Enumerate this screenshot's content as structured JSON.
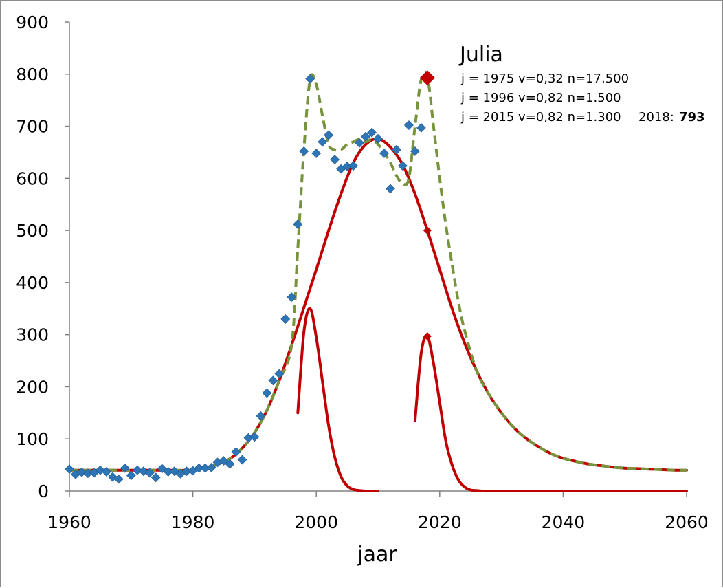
{
  "chart_data": {
    "type": "scatter",
    "title": "",
    "xlabel": "jaar",
    "ylabel": "",
    "xlim": [
      1960,
      2060
    ],
    "ylim": [
      0,
      900
    ],
    "x_ticks": [
      "1960",
      "1980",
      "2000",
      "2020",
      "2040",
      "2060"
    ],
    "y_ticks": [
      "0",
      "100",
      "200",
      "300",
      "400",
      "500",
      "600",
      "700",
      "800",
      "900"
    ],
    "grid": false,
    "colors": {
      "observed": "#2e75b6",
      "model": "#c00000",
      "sum": "#77933c"
    },
    "annotation": {
      "name": "Julia",
      "lines": [
        "j = 1975 v=0,32 n=17.500",
        "j = 1996 v=0,82 n=1.500",
        "j = 2015 v=0,82 n=1.300"
      ],
      "current_label": "2018:",
      "current_value": "793"
    },
    "observed": {
      "x": [
        1960,
        1961,
        1962,
        1963,
        1964,
        1965,
        1966,
        1967,
        1968,
        1969,
        1970,
        1971,
        1972,
        1973,
        1974,
        1975,
        1976,
        1977,
        1978,
        1979,
        1980,
        1981,
        1982,
        1983,
        1984,
        1985,
        1986,
        1987,
        1988,
        1989,
        1990,
        1991,
        1992,
        1993,
        1994,
        1995,
        1996,
        1997,
        1998,
        1999,
        2000,
        2001,
        2002,
        2003,
        2004,
        2005,
        2006,
        2007,
        2008,
        2009,
        2010,
        2011,
        2012,
        2013,
        2014,
        2015,
        2016,
        2017
      ],
      "y": [
        42,
        32,
        36,
        34,
        35,
        40,
        37,
        27,
        23,
        44,
        30,
        40,
        38,
        35,
        26,
        43,
        37,
        38,
        33,
        38,
        39,
        44,
        44,
        45,
        55,
        58,
        52,
        75,
        60,
        102,
        104,
        144,
        188,
        212,
        225,
        330,
        372,
        512,
        652,
        791,
        648,
        670,
        683,
        636,
        618,
        623,
        624,
        668,
        680,
        688,
        676,
        648,
        580,
        655,
        624,
        702,
        652,
        697
      ]
    },
    "highlight": {
      "x": 2018,
      "y": 793
    },
    "series": [
      {
        "x": [
          1960,
          1965,
          1970,
          1975,
          1980,
          1982,
          1984,
          1986,
          1988,
          1990,
          1992,
          1994,
          1996,
          1998,
          2000,
          2002,
          2004,
          2006,
          2008,
          2010,
          2012,
          2014,
          2016,
          2018,
          2020,
          2022,
          2024,
          2026,
          2028,
          2030,
          2032,
          2034,
          2036,
          2038,
          2040,
          2042,
          2044,
          2046,
          2048,
          2050,
          2052,
          2054,
          2056,
          2058,
          2060
        ],
        "values": [
          40,
          40,
          40,
          40,
          40,
          44,
          51,
          62,
          82,
          112,
          155,
          212,
          280,
          352,
          425,
          500,
          570,
          630,
          665,
          676,
          660,
          626,
          570,
          500,
          425,
          350,
          285,
          230,
          185,
          150,
          122,
          101,
          85,
          72,
          63,
          57,
          52,
          49,
          46,
          44,
          43,
          42,
          41,
          40,
          40
        ]
      },
      {
        "x": [
          1997,
          1998,
          1999,
          2000,
          2001,
          2002,
          2003,
          2004,
          2005,
          2006,
          2007,
          2008,
          2010
        ],
        "values": [
          150,
          305,
          350,
          295,
          210,
          125,
          65,
          28,
          10,
          3,
          1,
          0,
          0
        ]
      },
      {
        "x": [
          2016,
          2017,
          2018,
          2019,
          2020,
          2021,
          2022,
          2023,
          2024,
          2025,
          2026,
          2027,
          2028,
          2030,
          2060
        ],
        "values": [
          135,
          265,
          297,
          245,
          170,
          95,
          50,
          22,
          8,
          2,
          1,
          0,
          0,
          0,
          0
        ]
      },
      {
        "x": [
          1960,
          1965,
          1970,
          1975,
          1980,
          1982,
          1984,
          1986,
          1988,
          1990,
          1992,
          1994,
          1996,
          1997,
          1998,
          1999,
          2000,
          2001,
          2002,
          2003,
          2004,
          2005,
          2006,
          2007,
          2008,
          2009,
          2010,
          2011,
          2012,
          2013,
          2014,
          2015,
          2016,
          2017,
          2018,
          2019,
          2020,
          2021,
          2022,
          2023,
          2024,
          2026,
          2028,
          2030,
          2032,
          2034,
          2036,
          2038,
          2040,
          2042,
          2044,
          2046,
          2048,
          2050,
          2052,
          2054,
          2056,
          2058,
          2060
        ],
        "values": [
          40,
          40,
          40,
          40,
          40,
          44,
          51,
          62,
          82,
          112,
          155,
          212,
          280,
          465,
          655,
          790,
          780,
          720,
          665,
          655,
          655,
          665,
          670,
          675,
          670,
          675,
          665,
          650,
          630,
          605,
          590,
          600,
          700,
          790,
          795,
          700,
          600,
          510,
          435,
          365,
          310,
          230,
          185,
          150,
          122,
          101,
          85,
          72,
          63,
          57,
          52,
          49,
          46,
          44,
          43,
          42,
          41,
          40,
          40
        ]
      }
    ],
    "markers_on_model": [
      {
        "x": 2018,
        "y": 500
      },
      {
        "x": 2018,
        "y": 297
      }
    ]
  }
}
